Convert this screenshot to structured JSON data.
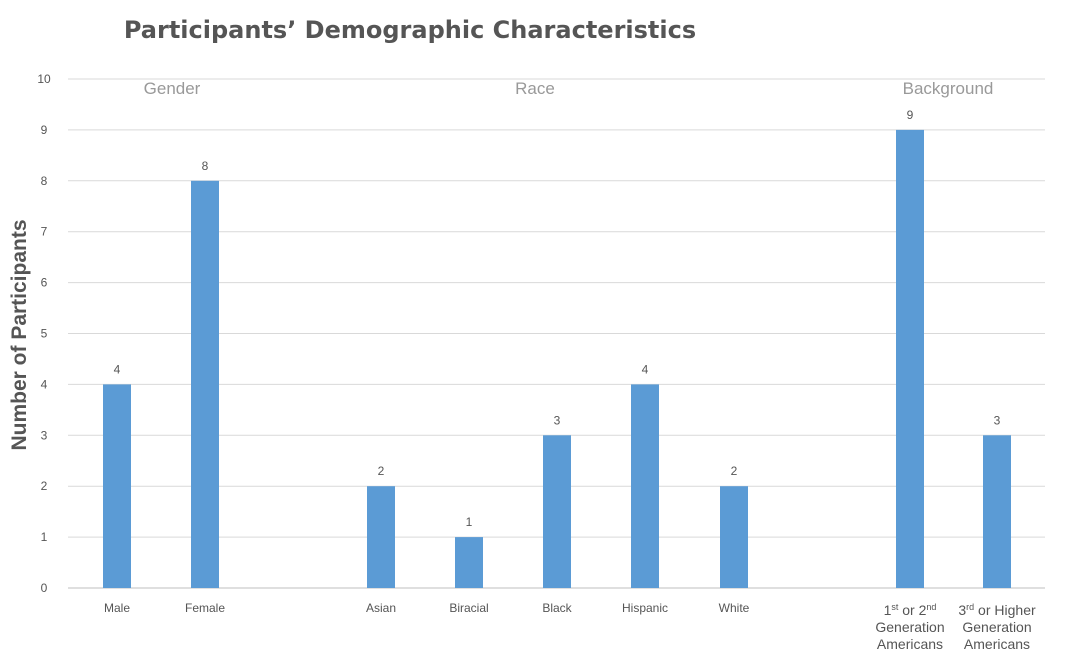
{
  "chart_data": {
    "type": "bar",
    "title": "Participants’ Demographic Characteristics",
    "ylabel": "Number of Participants",
    "xlabel": "",
    "ylim": [
      0,
      10
    ],
    "yticks": [
      0,
      1,
      2,
      3,
      4,
      5,
      6,
      7,
      8,
      9,
      10
    ],
    "grid": true,
    "bar_color": "#5b9bd5",
    "groups": [
      {
        "label": "Gender",
        "categories": [
          {
            "label": "Male",
            "value": 4
          },
          {
            "label": "Female",
            "value": 8
          }
        ]
      },
      {
        "label": "Race",
        "categories": [
          {
            "label": "Asian",
            "value": 2
          },
          {
            "label": "Biracial",
            "value": 1
          },
          {
            "label": "Black",
            "value": 3
          },
          {
            "label": "Hispanic",
            "value": 4
          },
          {
            "label": "White",
            "value": 2
          }
        ]
      },
      {
        "label": "Background",
        "categories": [
          {
            "label": "1st or 2nd Generation Americans",
            "value": 9
          },
          {
            "label": "3rd or Higher Generation Americans",
            "value": 3
          }
        ]
      }
    ]
  }
}
